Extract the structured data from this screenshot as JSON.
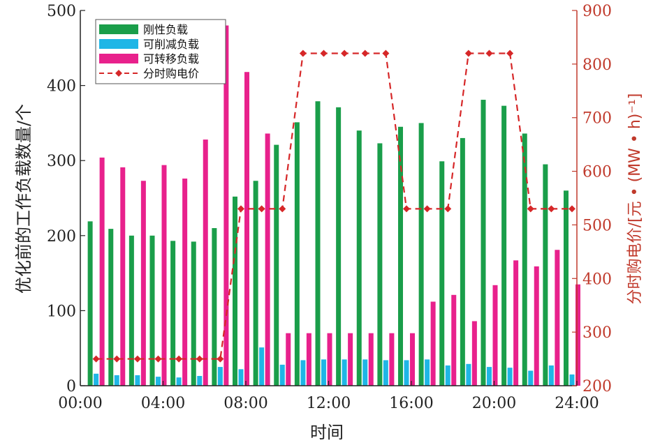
{
  "chart_data": {
    "type": "bar",
    "xlabel": "时间",
    "ylabel": "优化前的工作负载数量/个",
    "y2label": "分时购电价/[元 • (MW • h)⁻¹]",
    "ylim": [
      0,
      500
    ],
    "y2lim": [
      200,
      900
    ],
    "yticks": [
      "0",
      "100",
      "200",
      "300",
      "400",
      "500"
    ],
    "y2ticks": [
      "200",
      "300",
      "400",
      "500",
      "600",
      "700",
      "800",
      "900"
    ],
    "xticks": [
      "00:00",
      "04:00",
      "08:00",
      "12:00",
      "16:00",
      "20:00",
      "24:00"
    ],
    "hours": [
      1,
      2,
      3,
      4,
      5,
      6,
      7,
      8,
      9,
      10,
      11,
      12,
      13,
      14,
      15,
      16,
      17,
      18,
      19,
      20,
      21,
      22,
      23,
      24
    ],
    "series": [
      {
        "name": "刚性负载",
        "color": "#1a9e4a",
        "type": "bar",
        "values": [
          219,
          209,
          200,
          200,
          193,
          192,
          210,
          252,
          273,
          321,
          351,
          379,
          371,
          340,
          323,
          345,
          350,
          299,
          330,
          381,
          373,
          336,
          295,
          260
        ]
      },
      {
        "name": "可削减负载",
        "color": "#1fb6e6",
        "type": "bar",
        "values": [
          16,
          14,
          14,
          12,
          11,
          13,
          25,
          22,
          51,
          28,
          34,
          35,
          35,
          35,
          34,
          34,
          35,
          27,
          29,
          25,
          24,
          20,
          27,
          15
        ]
      },
      {
        "name": "可转移负载",
        "color": "#e8218c",
        "type": "bar",
        "values": [
          304,
          291,
          273,
          294,
          276,
          328,
          480,
          418,
          336,
          70,
          70,
          70,
          70,
          70,
          70,
          70,
          112,
          121,
          86,
          134,
          167,
          159,
          181,
          135
        ]
      },
      {
        "name": "分时购电价",
        "color": "#d62728",
        "type": "line",
        "axis": "right",
        "values": [
          250,
          250,
          250,
          250,
          250,
          250,
          250,
          530,
          530,
          530,
          820,
          820,
          820,
          820,
          820,
          530,
          530,
          530,
          820,
          820,
          820,
          530,
          530,
          530
        ]
      }
    ],
    "legend": "top-left"
  }
}
